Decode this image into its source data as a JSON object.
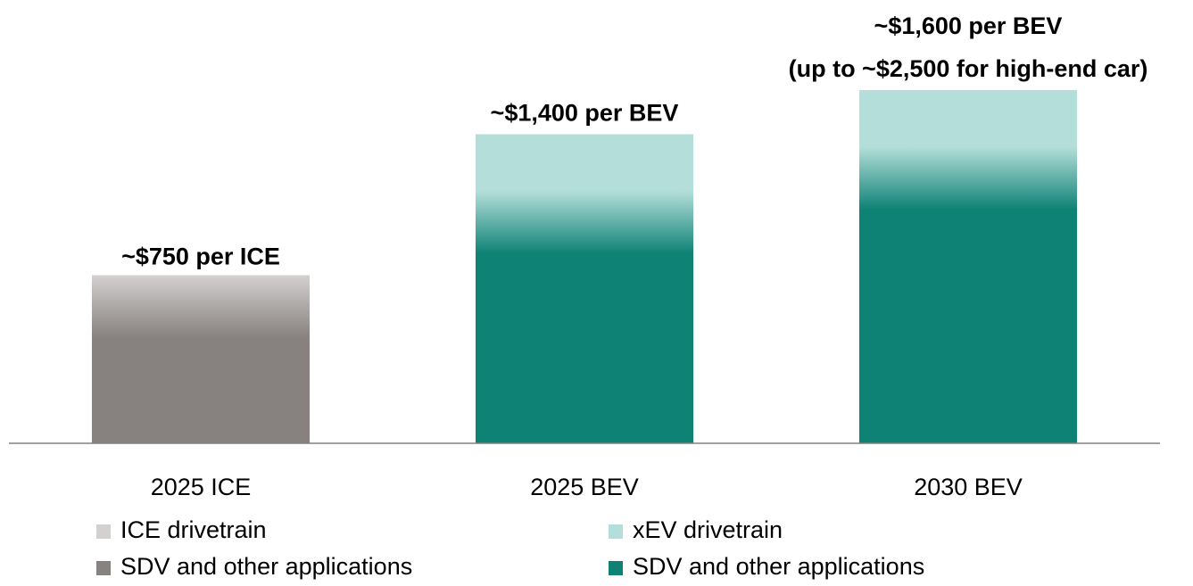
{
  "chart_data": {
    "type": "stacked_bar",
    "categories": [
      "2025 ICE",
      "2025 BEV",
      "2030 BEV"
    ],
    "annotations": [
      [
        "~$750 per ICE"
      ],
      [
        "~$1,400 per BEV"
      ],
      [
        "~$1,600 per BEV",
        "(up to ~$2,500 for high-end car)"
      ]
    ],
    "series": [
      {
        "name": "ICE drivetrain",
        "color": "#d3d0cf",
        "values": [
          130,
          null,
          null
        ],
        "stack_top": true
      },
      {
        "name": "SDV and other applications",
        "color": "#878280",
        "values": [
          620,
          null,
          null
        ]
      },
      {
        "name": "xEV drivetrain",
        "color": "#b3ded9",
        "values": [
          null,
          400,
          400
        ],
        "stack_top": true
      },
      {
        "name": "SDV and other applications",
        "color": "#0e8275",
        "values": [
          null,
          1000,
          1200
        ]
      }
    ]
  }
}
